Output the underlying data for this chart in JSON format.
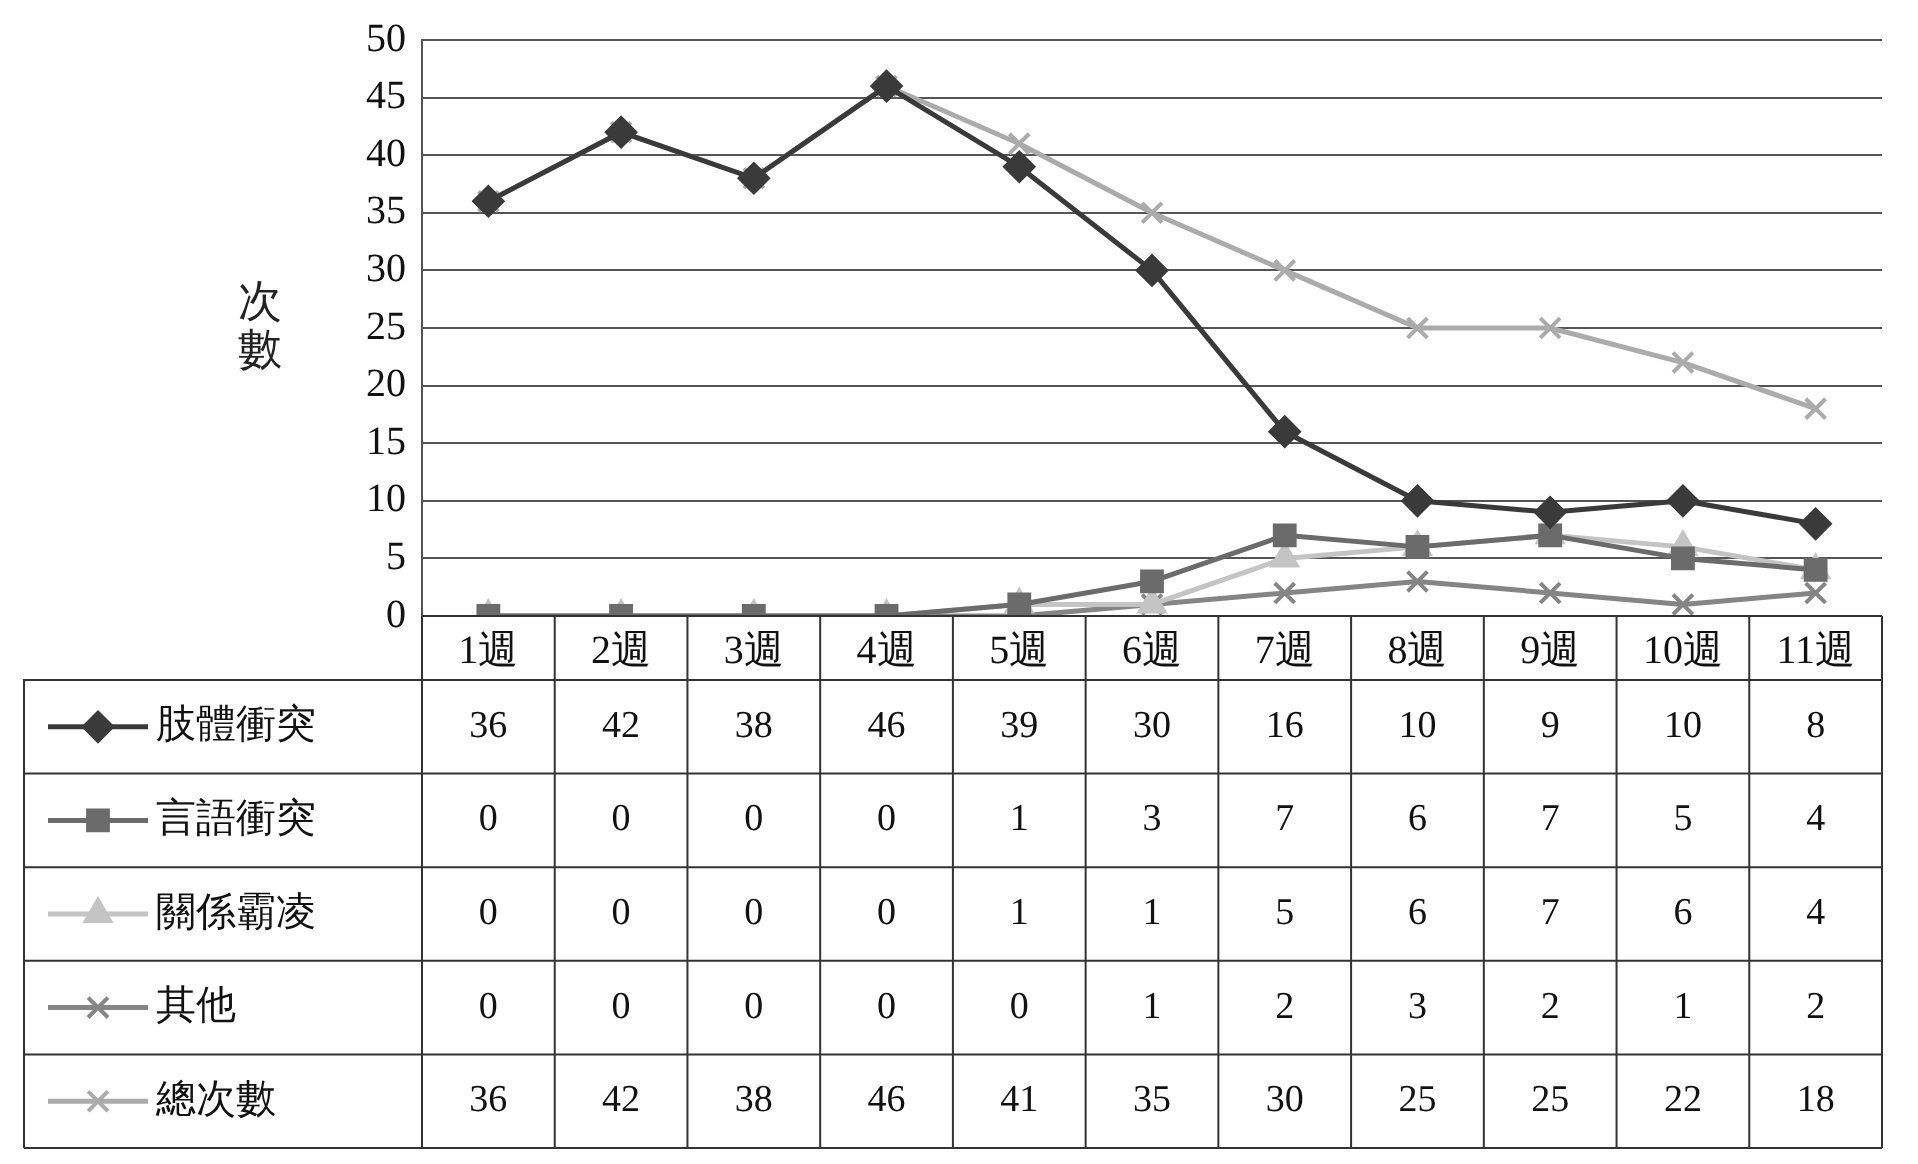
{
  "chart_data": {
    "type": "line",
    "ylabel": "次數",
    "categories": [
      "1週",
      "2週",
      "3週",
      "4週",
      "5週",
      "6週",
      "7週",
      "8週",
      "9週",
      "10週",
      "11週"
    ],
    "series": [
      {
        "name": "肢體衝突",
        "color": "#3a3a3a",
        "marker": "diamond",
        "values": [
          36,
          42,
          38,
          46,
          39,
          30,
          16,
          10,
          9,
          10,
          8
        ]
      },
      {
        "name": "言語衝突",
        "color": "#6b6b6b",
        "marker": "square",
        "values": [
          0,
          0,
          0,
          0,
          1,
          3,
          7,
          6,
          7,
          5,
          4
        ]
      },
      {
        "name": "關係霸凌",
        "color": "#c4c4c4",
        "marker": "triangle",
        "values": [
          0,
          0,
          0,
          0,
          1,
          1,
          5,
          6,
          7,
          6,
          4
        ]
      },
      {
        "name": "其他",
        "color": "#858585",
        "marker": "cross",
        "values": [
          0,
          0,
          0,
          0,
          0,
          1,
          2,
          3,
          2,
          1,
          2
        ]
      },
      {
        "name": "總次數",
        "color": "#ababab",
        "marker": "cross",
        "values": [
          36,
          42,
          38,
          46,
          41,
          35,
          30,
          25,
          25,
          22,
          18
        ]
      }
    ],
    "ylim": [
      0,
      50
    ],
    "yticks": [
      0,
      5,
      10,
      15,
      20,
      25,
      30,
      35,
      40,
      45,
      50
    ],
    "grid": "y",
    "legend": "bottom left",
    "data_labels": true
  }
}
